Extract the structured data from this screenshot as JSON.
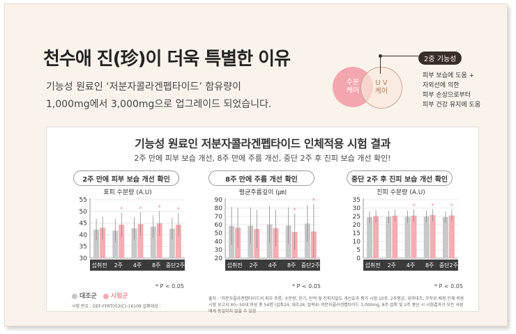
{
  "heading": {
    "title": "천수애 진(珍)이 더욱 특별한 이유",
    "line1": "기능성 원료인 ‘저분자콜라겐펩타이드’ 함유량이",
    "line2": "1,000mg에서 3,000mg으로 업그레이드 되었습니다."
  },
  "venn": {
    "left": "수분\n케어",
    "right": "U V\n케어",
    "badge": "2중 기능성",
    "desc": [
      "피부 보습에 도움 +",
      "자외선에 의한",
      "피부 손상으로부터",
      "피부 건강 유지에 도움"
    ]
  },
  "panel": {
    "title": "기능성 원료인 저분자콜라겐펩타이드 인체적용 시험 결과",
    "subtitle": "2주 만에 피부 보습 개선, 8주 만에 주름 개선, 중단 2주 후 진피 보습 개선 확인!",
    "legend_control": "대조군",
    "legend_test": "시험군",
    "colors": {
      "control": "#c8c8c8",
      "test": "#f5adb3",
      "star": "#f08f9b"
    },
    "p_note_1": "* P < 0.05",
    "p_note_2": "* P < 0.05",
    "p_note_3": "* P < 0.05",
    "source": "출처 : '저분자콜라겐펩타이드의 피부 주름, 수분량, 윤기, 탄력 및 진피치밀도 개선효과 평가 시험 10주, 2주평감, 위약대조, 무작위 배정 인체 적용 시험 보고서 40~50대 여성 총 54명 (섭취24, 대조26, 탈락4) 저분자콜라겐펩타이드 3,000mg, 8주 섭취 및 2주 중단 시 시험결과가 모든 사람에게 동일하지 않을 수 있음",
    "test_no": "시험 번호 : DEF-FFRT053(C)-16109 섭취대상 :"
  },
  "chart_data": [
    {
      "type": "bar",
      "title": "2주 만에 피부 보습 개선 확인",
      "ylabel": "표피 수분량 (A.U)",
      "categories": [
        "섭취전",
        "2주",
        "4주",
        "8주",
        "중단2주"
      ],
      "ylim": [
        30,
        55
      ],
      "yticks": [
        30,
        35,
        40,
        45,
        50,
        55
      ],
      "series": [
        {
          "name": "대조군",
          "values": [
            42.2,
            41.8,
            42.8,
            43.5,
            42.6
          ],
          "errors": [
            4.5,
            5.0,
            4.6,
            4.8,
            4.6
          ]
        },
        {
          "name": "시험군",
          "values": [
            43.0,
            44.3,
            44.6,
            44.9,
            44.3
          ],
          "errors": [
            4.8,
            5.2,
            5.0,
            5.3,
            5.0
          ]
        }
      ],
      "significant": [
        false,
        true,
        true,
        true,
        true
      ]
    },
    {
      "type": "bar",
      "title": "8주 만에 주름 개선 확인",
      "ylabel": "평균주름깊이 (㎛)",
      "categories": [
        "섭취전",
        "2주",
        "4주",
        "8주",
        "중단2주"
      ],
      "ylim": [
        20,
        90
      ],
      "yticks": [
        20,
        30,
        40,
        50,
        60,
        70,
        80,
        90
      ],
      "series": [
        {
          "name": "대조군",
          "values": [
            58.5,
            58.8,
            60.5,
            59.0,
            61.5
          ],
          "errors": [
            23,
            22,
            22,
            22,
            22
          ]
        },
        {
          "name": "시험군",
          "values": [
            56.5,
            55.0,
            56.0,
            51.5,
            52.0
          ],
          "errors": [
            24,
            23,
            22,
            22,
            33
          ]
        }
      ],
      "significant": [
        false,
        false,
        false,
        true,
        true
      ]
    },
    {
      "type": "bar",
      "title": "중단 2주 후 진피 보습 개선 확인",
      "ylabel": "진피 수분량 (A.U)",
      "categories": [
        "섭취전",
        "2주",
        "4주",
        "8주",
        "중단2주"
      ],
      "ylim": [
        0,
        35
      ],
      "yticks": [
        0,
        5,
        10,
        15,
        20,
        25,
        30,
        35
      ],
      "ytick_labels": [
        "0",
        "5",
        "10",
        "15",
        "20",
        "25",
        "30",
        "35"
      ],
      "series": [
        {
          "name": "대조군",
          "values": [
            24.5,
            24.8,
            24.8,
            25.0,
            24.6
          ],
          "errors": [
            3.5,
            3.5,
            3.5,
            3.5,
            3.5
          ]
        },
        {
          "name": "시험군",
          "values": [
            25.2,
            25.4,
            25.5,
            25.8,
            25.6
          ],
          "errors": [
            3.6,
            3.6,
            3.6,
            3.6,
            3.6
          ]
        }
      ],
      "significant": [
        false,
        false,
        true,
        true,
        true
      ]
    }
  ]
}
